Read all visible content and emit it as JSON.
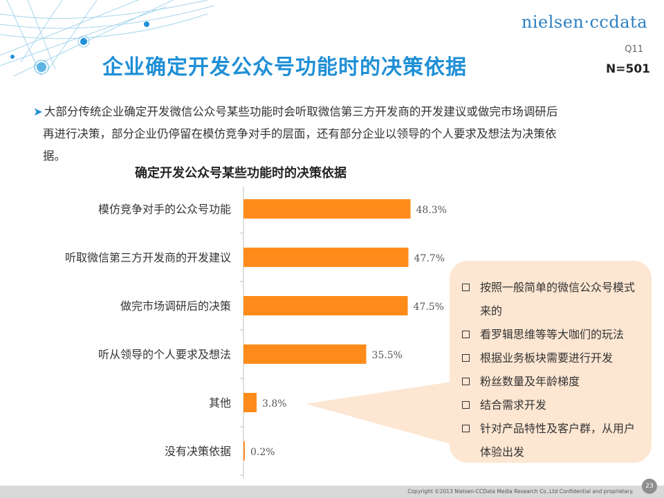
{
  "header": {
    "logo": "nielsen·ccdata",
    "question": "Q11",
    "sample": "N=501",
    "title": "企业确定开发公众号功能时的决策依据"
  },
  "description": {
    "lines": [
      "大部分传统企业确定开发微信公众号某些功能时会听取微信第三方开发商的开发建议或做完市场调研后",
      "再进行决策，部分企业仍停留在模仿竞争对手的层面，还有部分企业以领导的个人要求及想法为决策依",
      "据。"
    ]
  },
  "chart_data": {
    "type": "bar",
    "orientation": "horizontal",
    "title": "确定开发公众号某些功能时的决策依据",
    "categories": [
      "模仿竞争对手的公众号功能",
      "听取微信第三方开发商的开发建议",
      "做完市场调研后的决策",
      "听从领导的个人要求及想法",
      "其他",
      "没有决策依据"
    ],
    "values": [
      48.3,
      47.7,
      47.5,
      35.5,
      3.8,
      0.2
    ],
    "value_labels": [
      "48.3%",
      "47.7%",
      "47.5%",
      "35.5%",
      "3.8%",
      "0.2%"
    ],
    "unit": "%",
    "bar_color": "#ff8c1a",
    "xlim": [
      0,
      50
    ]
  },
  "callout": {
    "items": [
      "按照一般简单的微信公众号模式来的",
      "看罗辑思维等等大咖们的玩法",
      "根据业务板块需要进行开发",
      "粉丝数量及年龄梯度",
      "结合需求开发",
      "针对产品特性及客户群，从用户体验出发"
    ]
  },
  "footer": {
    "copyright": "Copyright ©2013  Nielsen-CCData Media Research Co.,Ltd  Confidential and proprietary.",
    "page": "23"
  },
  "colors": {
    "accent": "#1f8fd6",
    "bar": "#ff8c1a",
    "callout_bg": "#fde6d2"
  }
}
